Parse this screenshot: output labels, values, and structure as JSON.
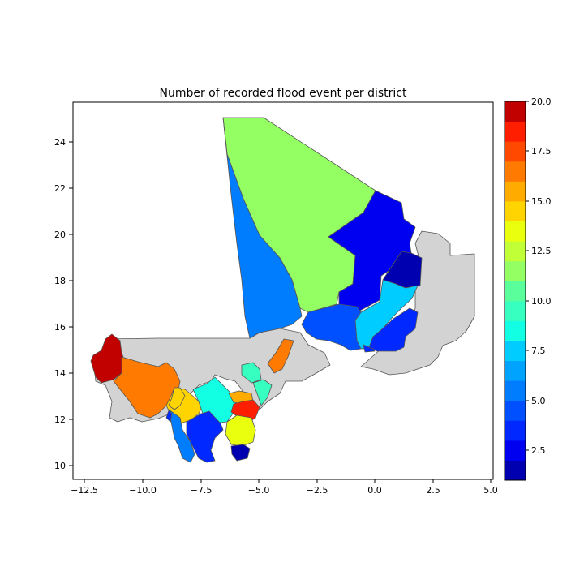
{
  "title": "Number of recorded flood event per district",
  "x_ticks": [
    "−12.5",
    "−10.0",
    "−7.5",
    "−5.0",
    "−2.5",
    "0.0",
    "2.5",
    "5.0"
  ],
  "y_ticks": [
    "10",
    "12",
    "14",
    "16",
    "18",
    "20",
    "22",
    "24"
  ],
  "colorbar_ticks": [
    "2.5",
    "5.0",
    "7.5",
    "10.0",
    "12.5",
    "15.0",
    "17.5",
    "20.0"
  ],
  "colors": {
    "no_data": "#d3d3d3",
    "border": "#555555",
    "scale": [
      "#000080",
      "#0000b0",
      "#0000f1",
      "#0028ff",
      "#0050ff",
      "#007cff",
      "#00a4ff",
      "#00ccff",
      "#13ffe3",
      "#37ffc0",
      "#5aff9c",
      "#94ff63",
      "#c1ff36",
      "#eaff0d",
      "#ffd400",
      "#ffab00",
      "#ff7a00",
      "#ff4800",
      "#ff1e00",
      "#c10000",
      "#800000"
    ]
  },
  "chart_data": {
    "type": "choropleth",
    "title": "Number of recorded flood event per district",
    "xlim": [
      -13.3,
      5.2
    ],
    "ylim": [
      9.4,
      25.8
    ],
    "color_range": [
      1,
      20
    ],
    "colorbar_steps": 19,
    "districts": [
      {
        "id": "tessalit",
        "value": 11
      },
      {
        "id": "tombouctou-west",
        "value": 6
      },
      {
        "id": "bourem",
        "value": 3
      },
      {
        "id": "kidal-east",
        "value": 2
      },
      {
        "id": "gao",
        "value": 8
      },
      {
        "id": "ansongo",
        "value": 4
      },
      {
        "id": "menaka",
        "value": 4
      },
      {
        "id": "goundam",
        "value": 5
      },
      {
        "id": "kayes",
        "value": 19
      },
      {
        "id": "bafoulabe",
        "value": 16
      },
      {
        "id": "koulikoro",
        "value": 14
      },
      {
        "id": "segou",
        "value": 9
      },
      {
        "id": "mopti-north",
        "value": 10
      },
      {
        "id": "mopti",
        "value": 16
      },
      {
        "id": "bandiagara",
        "value": 10
      },
      {
        "id": "san-west",
        "value": 15
      },
      {
        "id": "san",
        "value": 18
      },
      {
        "id": "kita",
        "value": 14
      },
      {
        "id": "bougouni",
        "value": 6
      },
      {
        "id": "kolondieba",
        "value": 4
      },
      {
        "id": "yanfolila",
        "value": 4
      },
      {
        "id": "sikasso",
        "value": 13
      },
      {
        "id": "kadiolo",
        "value": 2
      }
    ]
  }
}
